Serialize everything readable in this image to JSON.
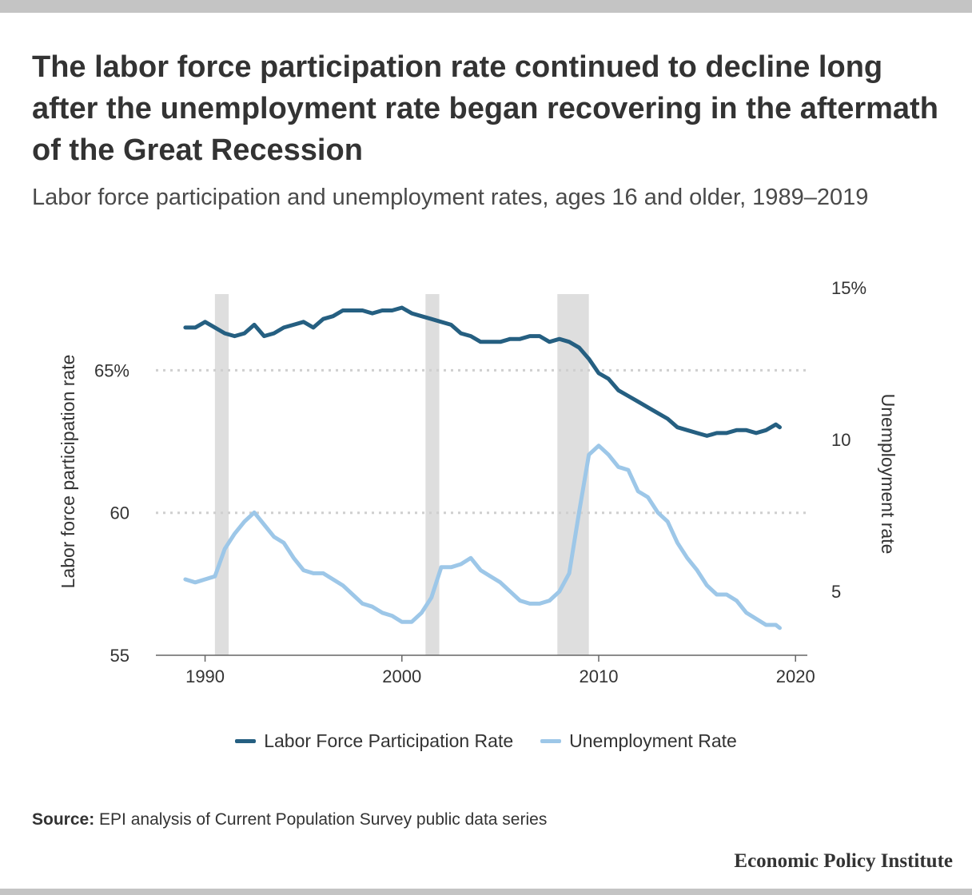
{
  "header": {
    "title": "The labor force participation rate continued to decline long after the unemployment rate began recovering in the aftermath of the Great Recession",
    "subtitle": "Labor force participation and unemployment rates, ages 16 and older, 1989–2019"
  },
  "chart_data": {
    "type": "line",
    "title": "The labor force participation rate continued to decline long after the unemployment rate began recovering in the aftermath of the Great Recession",
    "subtitle": "Labor force participation and unemployment rates, ages 16 and older, 1989–2019",
    "x_axis": {
      "ticks": [
        1990,
        2000,
        2010,
        2020
      ],
      "range": [
        1987.5,
        2020.6
      ]
    },
    "y_left": {
      "label": "Labor force participation rate",
      "ticks": [
        55,
        60,
        65
      ],
      "tick_labels": [
        "55",
        "60",
        "65%"
      ],
      "range": [
        55,
        67.9
      ]
    },
    "y_right": {
      "label": "Unemployment rate",
      "ticks": [
        5,
        10,
        15
      ],
      "tick_labels": [
        "5",
        "10",
        "15%"
      ],
      "range": [
        2.9,
        15
      ]
    },
    "recessions": [
      [
        1990.5,
        1991.2
      ],
      [
        2001.2,
        2001.9
      ],
      [
        2007.9,
        2009.5
      ]
    ],
    "grid": "dotted horizontal at 60 and 65",
    "legend_position": "bottom",
    "series": [
      {
        "name": "Labor Force Participation Rate",
        "axis": "left",
        "color": "#255f81",
        "x": [
          1989.0,
          1989.5,
          1990.0,
          1990.5,
          1991.0,
          1991.5,
          1992.0,
          1992.5,
          1993.0,
          1993.5,
          1994.0,
          1994.5,
          1995.0,
          1995.5,
          1996.0,
          1996.5,
          1997.0,
          1997.5,
          1998.0,
          1998.5,
          1999.0,
          1999.5,
          2000.0,
          2000.5,
          2001.0,
          2001.5,
          2002.0,
          2002.5,
          2003.0,
          2003.5,
          2004.0,
          2004.5,
          2005.0,
          2005.5,
          2006.0,
          2006.5,
          2007.0,
          2007.5,
          2008.0,
          2008.5,
          2009.0,
          2009.5,
          2010.0,
          2010.5,
          2011.0,
          2011.5,
          2012.0,
          2012.5,
          2013.0,
          2013.5,
          2014.0,
          2014.5,
          2015.0,
          2015.5,
          2016.0,
          2016.5,
          2017.0,
          2017.5,
          2018.0,
          2018.5,
          2019.0,
          2019.2
        ],
        "values": [
          66.5,
          66.5,
          66.7,
          66.5,
          66.3,
          66.2,
          66.3,
          66.6,
          66.2,
          66.3,
          66.5,
          66.6,
          66.7,
          66.5,
          66.8,
          66.9,
          67.1,
          67.1,
          67.1,
          67.0,
          67.1,
          67.1,
          67.2,
          67.0,
          66.9,
          66.8,
          66.7,
          66.6,
          66.3,
          66.2,
          66.0,
          66.0,
          66.0,
          66.1,
          66.1,
          66.2,
          66.2,
          66.0,
          66.1,
          66.0,
          65.8,
          65.4,
          64.9,
          64.7,
          64.3,
          64.1,
          63.9,
          63.7,
          63.5,
          63.3,
          63.0,
          62.9,
          62.8,
          62.7,
          62.8,
          62.8,
          62.9,
          62.9,
          62.8,
          62.9,
          63.1,
          63.0
        ]
      },
      {
        "name": "Unemployment Rate",
        "axis": "right",
        "color": "#9dc7e8",
        "x": [
          1989.0,
          1989.5,
          1990.0,
          1990.5,
          1991.0,
          1991.5,
          1992.0,
          1992.5,
          1993.0,
          1993.5,
          1994.0,
          1994.5,
          1995.0,
          1995.5,
          1996.0,
          1996.5,
          1997.0,
          1997.5,
          1998.0,
          1998.5,
          1999.0,
          1999.5,
          2000.0,
          2000.5,
          2001.0,
          2001.5,
          2002.0,
          2002.5,
          2003.0,
          2003.5,
          2004.0,
          2004.5,
          2005.0,
          2005.5,
          2006.0,
          2006.5,
          2007.0,
          2007.5,
          2008.0,
          2008.5,
          2009.0,
          2009.5,
          2010.0,
          2010.5,
          2011.0,
          2011.5,
          2012.0,
          2012.5,
          2013.0,
          2013.5,
          2014.0,
          2014.5,
          2015.0,
          2015.5,
          2016.0,
          2016.5,
          2017.0,
          2017.5,
          2018.0,
          2018.5,
          2019.0,
          2019.2
        ],
        "values": [
          5.4,
          5.3,
          5.4,
          5.5,
          6.4,
          6.9,
          7.3,
          7.6,
          7.2,
          6.8,
          6.6,
          6.1,
          5.7,
          5.6,
          5.6,
          5.4,
          5.2,
          4.9,
          4.6,
          4.5,
          4.3,
          4.2,
          4.0,
          4.0,
          4.3,
          4.8,
          5.8,
          5.8,
          5.9,
          6.1,
          5.7,
          5.5,
          5.3,
          5.0,
          4.7,
          4.6,
          4.6,
          4.7,
          5.0,
          5.6,
          7.6,
          9.5,
          9.8,
          9.5,
          9.1,
          9.0,
          8.3,
          8.1,
          7.6,
          7.3,
          6.6,
          6.1,
          5.7,
          5.2,
          4.9,
          4.9,
          4.7,
          4.3,
          4.1,
          3.9,
          3.9,
          3.8
        ]
      }
    ]
  },
  "legend": {
    "items": [
      {
        "label": "Labor Force Participation Rate",
        "color": "#255f81"
      },
      {
        "label": "Unemployment Rate",
        "color": "#9dc7e8"
      }
    ]
  },
  "footer": {
    "source_label": "Source:",
    "source_text": "EPI analysis of Current Population Survey public data series",
    "brand": "Economic Policy Institute"
  }
}
